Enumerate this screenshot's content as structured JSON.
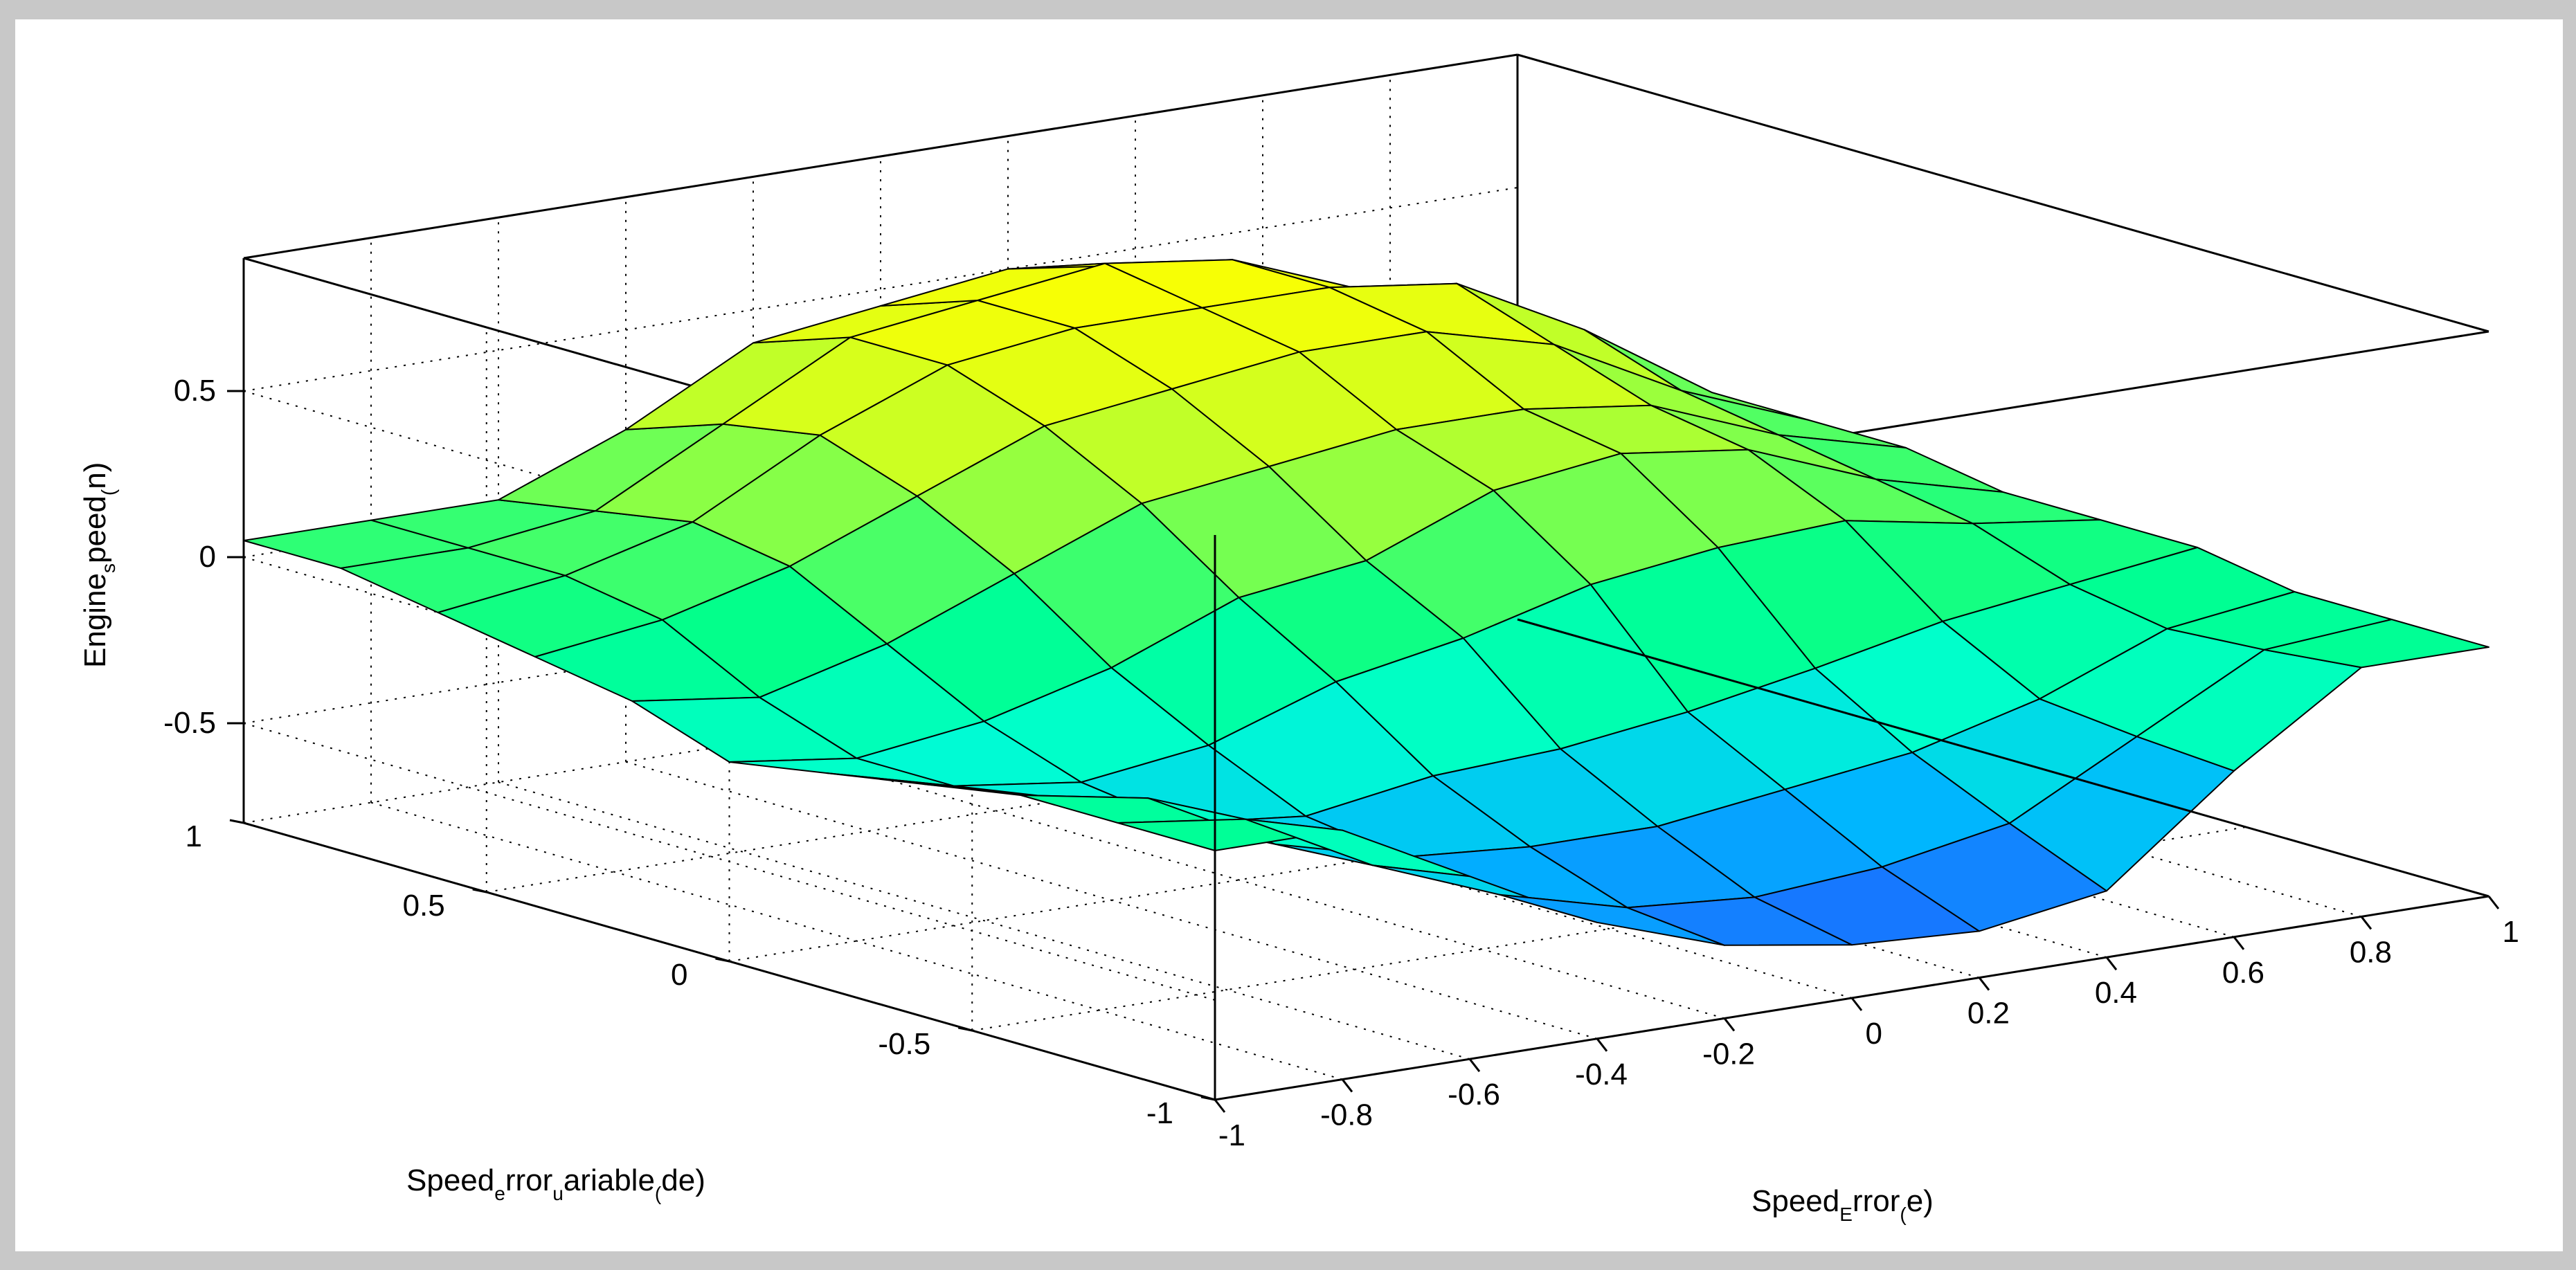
{
  "chart_data": {
    "type": "surface",
    "xlabel": [
      "Speed",
      "E",
      "rror",
      "(",
      "e)"
    ],
    "ylabel": [
      "Speed",
      "e",
      "rror",
      "u",
      "ariable",
      "(",
      "de)"
    ],
    "zlabel": [
      "Engine",
      "s",
      "peed",
      "(",
      "n)"
    ],
    "xlim": [
      -1,
      1
    ],
    "ylim": [
      -1,
      1
    ],
    "zlim": [
      -0.8,
      0.9
    ],
    "xticks": [
      -1,
      -0.8,
      -0.6,
      -0.4,
      -0.2,
      0,
      0.2,
      0.4,
      0.6,
      0.8,
      1
    ],
    "xtick_labels": [
      "-1",
      "-0.8",
      "-0.6",
      "-0.4",
      "-0.2",
      "0",
      "0.2",
      "0.4",
      "0.6",
      "0.8",
      "1"
    ],
    "yticks": [
      -1,
      -0.5,
      0,
      0.5,
      1
    ],
    "ytick_labels": [
      "-1",
      "-0.5",
      "0",
      "0.5",
      "1"
    ],
    "zticks": [
      -0.5,
      0,
      0.5
    ],
    "ztick_labels": [
      "-0.5",
      "0",
      "0.5"
    ],
    "grid": true,
    "colormap": [
      "#1e64ff",
      "#00b4ff",
      "#00ffd2",
      "#00ff8c",
      "#78ff50",
      "#d2ff1e",
      "#ffff00"
    ],
    "colors": {
      "background": "#c8c8c8",
      "axes_face": "#ffffff",
      "mesh_edge": "#000000"
    },
    "x": [
      -1,
      -0.8,
      -0.6,
      -0.4,
      -0.2,
      0,
      0.2,
      0.4,
      0.6,
      0.8,
      1
    ],
    "y": [
      -1,
      -0.8,
      -0.6,
      -0.4,
      -0.2,
      0,
      0.2,
      0.4,
      0.6,
      0.8,
      1
    ],
    "z_description": "rows indexed by y (de), columns by x (e)",
    "z": [
      [
        -0.05,
        -0.05,
        -0.25,
        -0.45,
        -0.58,
        -0.64,
        -0.66,
        -0.6,
        -0.3,
        -0.05,
        -0.05
      ],
      [
        -0.05,
        -0.1,
        -0.3,
        -0.45,
        -0.55,
        -0.58,
        -0.55,
        -0.48,
        -0.28,
        -0.08,
        -0.05
      ],
      [
        -0.05,
        -0.12,
        -0.32,
        -0.42,
        -0.45,
        -0.45,
        -0.4,
        -0.35,
        -0.25,
        -0.1,
        -0.05
      ],
      [
        -0.1,
        -0.2,
        -0.34,
        -0.38,
        -0.32,
        -0.3,
        -0.25,
        -0.18,
        -0.1,
        -0.05,
        0.0
      ],
      [
        -0.15,
        -0.25,
        -0.3,
        -0.25,
        -0.12,
        -0.05,
        0.05,
        0.1,
        0.12,
        0.05,
        0.0
      ],
      [
        -0.2,
        -0.25,
        -0.2,
        -0.1,
        0.05,
        0.1,
        0.25,
        0.3,
        0.25,
        0.1,
        0.0
      ],
      [
        -0.1,
        -0.15,
        -0.05,
        0.1,
        0.25,
        0.3,
        0.35,
        0.35,
        0.3,
        0.15,
        0.05
      ],
      [
        -0.05,
        0.0,
        0.1,
        0.25,
        0.4,
        0.45,
        0.5,
        0.5,
        0.4,
        0.2,
        0.05
      ],
      [
        0.0,
        0.05,
        0.15,
        0.35,
        0.5,
        0.55,
        0.55,
        0.55,
        0.5,
        0.3,
        0.05
      ],
      [
        0.05,
        0.05,
        0.1,
        0.3,
        0.5,
        0.55,
        0.6,
        0.55,
        0.4,
        0.1,
        0.05
      ],
      [
        0.05,
        0.05,
        0.05,
        0.2,
        0.4,
        0.45,
        0.5,
        0.45,
        0.3,
        0.05,
        0.05
      ]
    ]
  }
}
